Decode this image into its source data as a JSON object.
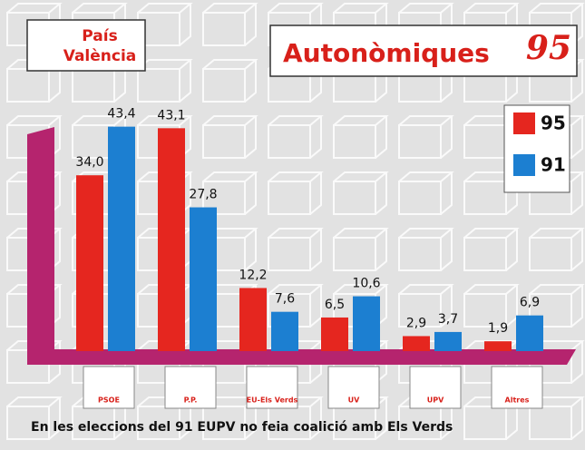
{
  "chart_data": {
    "type": "bar",
    "region": [
      "País",
      "València"
    ],
    "title": "Autonòmiques",
    "title_year": "95",
    "categories": [
      "PSOE",
      "P.P.",
      "EU-Els Verds",
      "UV",
      "UPV",
      "Altres"
    ],
    "series": [
      {
        "name": "95",
        "color": "#e5261f",
        "values": [
          34.0,
          43.1,
          12.2,
          6.5,
          2.9,
          1.9
        ],
        "value_labels": [
          "34,0",
          "43,1",
          "12,2",
          "6,5",
          "2,9",
          "1,9"
        ]
      },
      {
        "name": "91",
        "color": "#1c7fd1",
        "values": [
          43.4,
          27.8,
          7.6,
          10.6,
          3.7,
          6.9
        ],
        "value_labels": [
          "43,4",
          "27,8",
          "7,6",
          "10,6",
          "3,7",
          "6,9"
        ]
      }
    ],
    "note": "En les eleccions del 91 EUPV no feia coalició amb Els Verds"
  }
}
